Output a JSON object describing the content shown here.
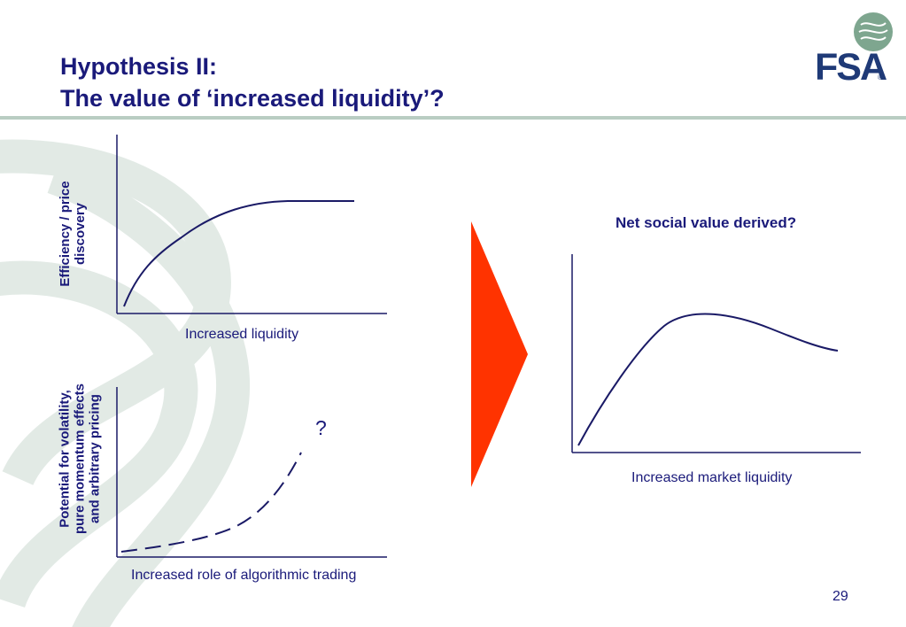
{
  "slide": {
    "title_line1": "Hypothesis II:",
    "title_line2": "The value of ‘increased liquidity’?",
    "page_number": "29"
  },
  "logo": {
    "text": "FSA",
    "registered": "®"
  },
  "colors": {
    "title": "#1a1a7a",
    "curve": "#1a1a66",
    "arrow": "#ff3300",
    "rule": "#b9cdc2",
    "watermark": "#dfe8e3"
  },
  "charts": {
    "top_left": {
      "ylabel_line1": "Efficiency / price",
      "ylabel_line2": "discovery",
      "xlabel": "Increased liquidity",
      "curve_shape": "concave rising, plateau"
    },
    "bottom_left": {
      "ylabel_line1": "Potential for volatility,",
      "ylabel_line2": "pure momentum effects",
      "ylabel_line3": "and arbitrary pricing",
      "xlabel": "Increased role of algorithmic trading",
      "annotation": "?",
      "curve_shape": "convex rising, dashed"
    },
    "right": {
      "title": "Net social value derived?",
      "xlabel": "Increased market liquidity",
      "curve_shape": "rises to peak then declines"
    }
  },
  "arrow": {
    "direction": "right",
    "icon": "triangle-arrow-right-icon"
  }
}
